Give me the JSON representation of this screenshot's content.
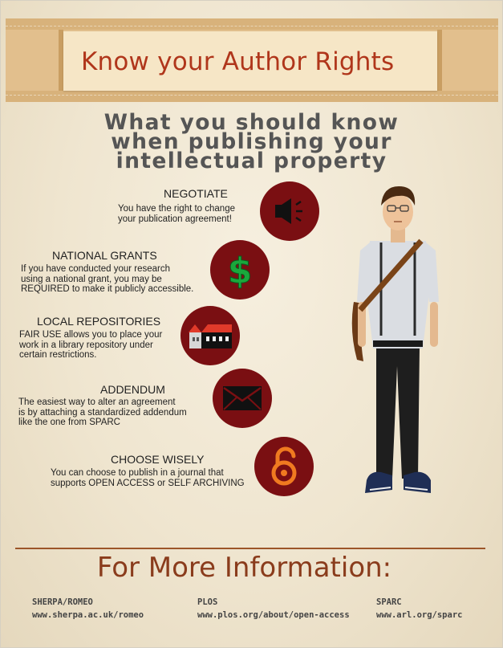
{
  "banner": {
    "title": "Know your Author Rights"
  },
  "subtitle": {
    "line1": "What you should know",
    "line2": "when publishing your",
    "line3": "intellectual property"
  },
  "items": [
    {
      "title": "NEGOTIATE",
      "lines": [
        "You have the right to change",
        "your publication agreement!"
      ],
      "icon": "speaker-icon"
    },
    {
      "title": "NATIONAL GRANTS",
      "lines": [
        "If you have conducted your research",
        "using a national grant, you may be",
        "REQUIRED to make it publicly accessible."
      ],
      "icon": "dollar-icon"
    },
    {
      "title": "LOCAL REPOSITORIES",
      "lines": [
        "FAIR USE allows you to place your",
        "work in a library repository under",
        "certain restrictions."
      ],
      "icon": "buildings-icon"
    },
    {
      "title": "ADDENDUM",
      "lines": [
        "The easiest way to alter an agreement",
        "is by attaching a standardized addendum",
        "like the one from SPARC"
      ],
      "icon": "envelope-icon"
    },
    {
      "title": "CHOOSE WISELY",
      "lines": [
        "You can choose to publish in a journal that",
        "supports OPEN ACCESS or SELF ARCHIVING"
      ],
      "icon": "open-lock-icon"
    }
  ],
  "more_info": {
    "title": "For More Information:",
    "links": [
      {
        "name": "SHERPA/ROMEO",
        "url": "www.sherpa.ac.uk/romeo"
      },
      {
        "name": "PLOS",
        "url": "www.plos.org/about/open-access"
      },
      {
        "name": "SPARC",
        "url": "www.arl.org/sparc"
      }
    ]
  },
  "colors": {
    "accent_red": "#7a0f12",
    "title_red": "#b0361b",
    "banner_tan": "#e2bf8d",
    "icon_green": "#1aa83c",
    "icon_orange": "#f07a20"
  }
}
